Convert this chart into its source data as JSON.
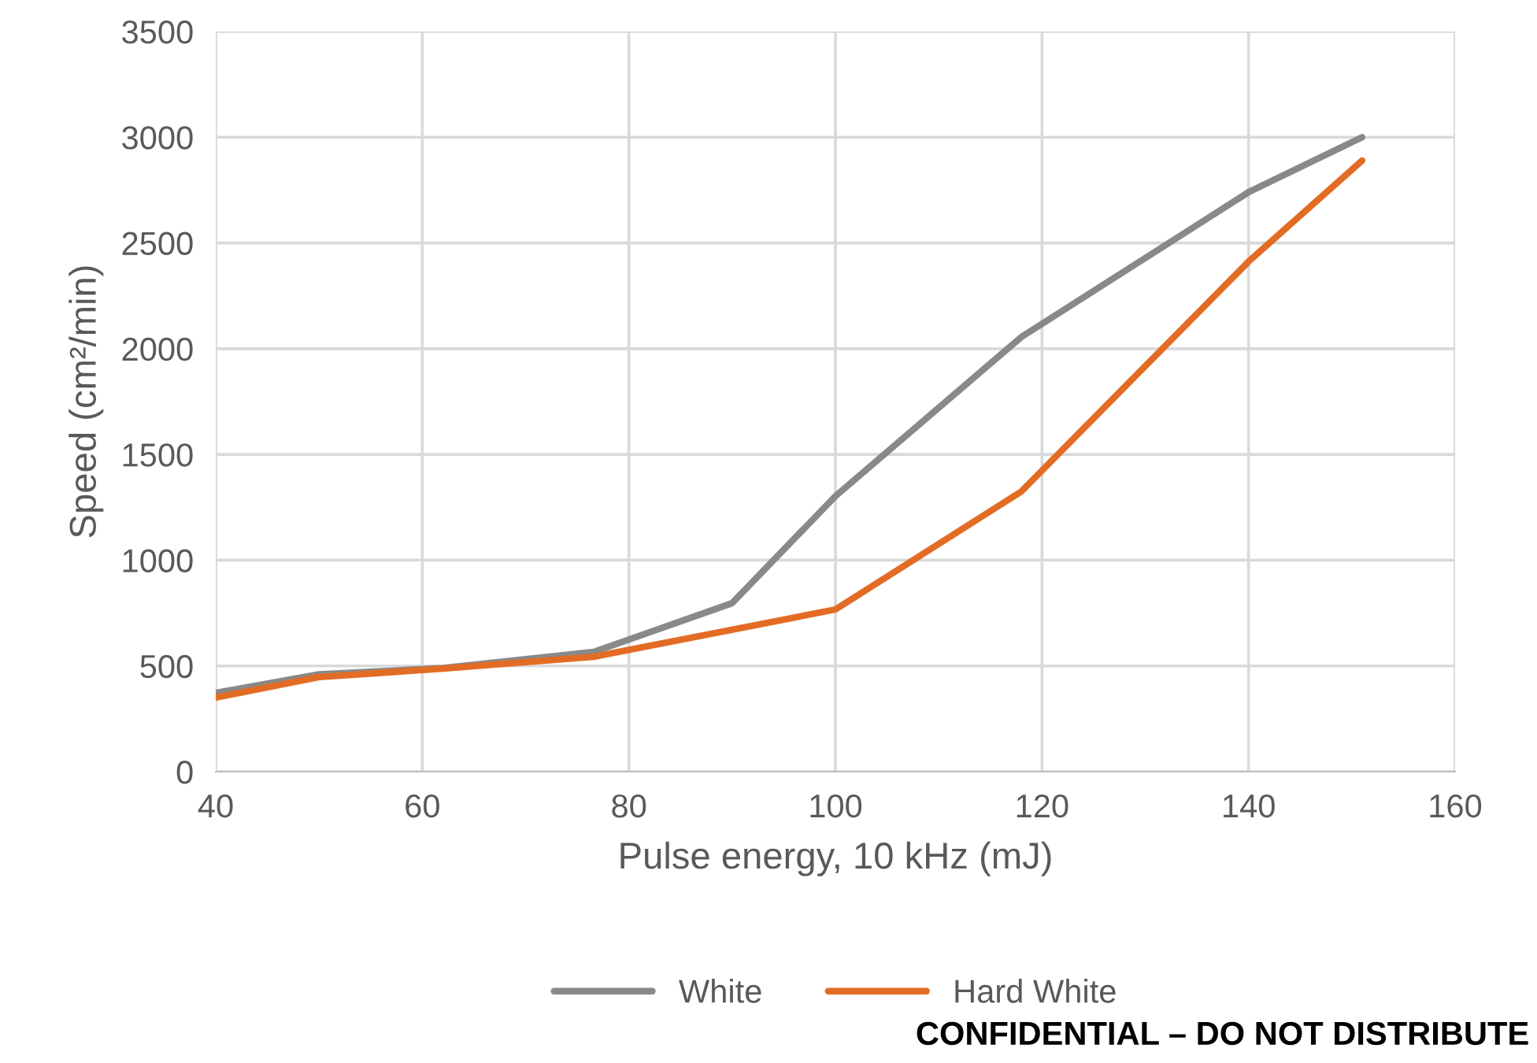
{
  "chart_data": {
    "type": "line",
    "xlabel": "Pulse energy, 10 kHz (mJ)",
    "ylabel": "Speed (cm²/min)",
    "xlim": [
      40,
      160
    ],
    "xticks": [
      40,
      60,
      80,
      100,
      120,
      140,
      160
    ],
    "ylim": [
      0,
      3500
    ],
    "yticks": [
      0,
      500,
      1000,
      1500,
      2000,
      2500,
      3000,
      3500
    ],
    "grid": true,
    "legend": "bottom",
    "line_style": "solid",
    "annotations": [
      "CONFIDENTIAL – DO NOT DISTRIBUTE"
    ],
    "series": [
      {
        "name": "White",
        "color": "#898989",
        "x": [
          40,
          50,
          62,
          76.6,
          90,
          100,
          118,
          140,
          151
        ],
        "values": [
          372,
          460,
          490,
          566,
          797,
          1303,
          2055,
          2740,
          3000
        ]
      },
      {
        "name": "Hard White",
        "color": "#e36c25",
        "x": [
          40,
          50,
          62,
          76.6,
          100,
          118,
          140,
          151
        ],
        "values": [
          350,
          447,
          487,
          543,
          767,
          1325,
          2412,
          2890
        ]
      }
    ]
  }
}
